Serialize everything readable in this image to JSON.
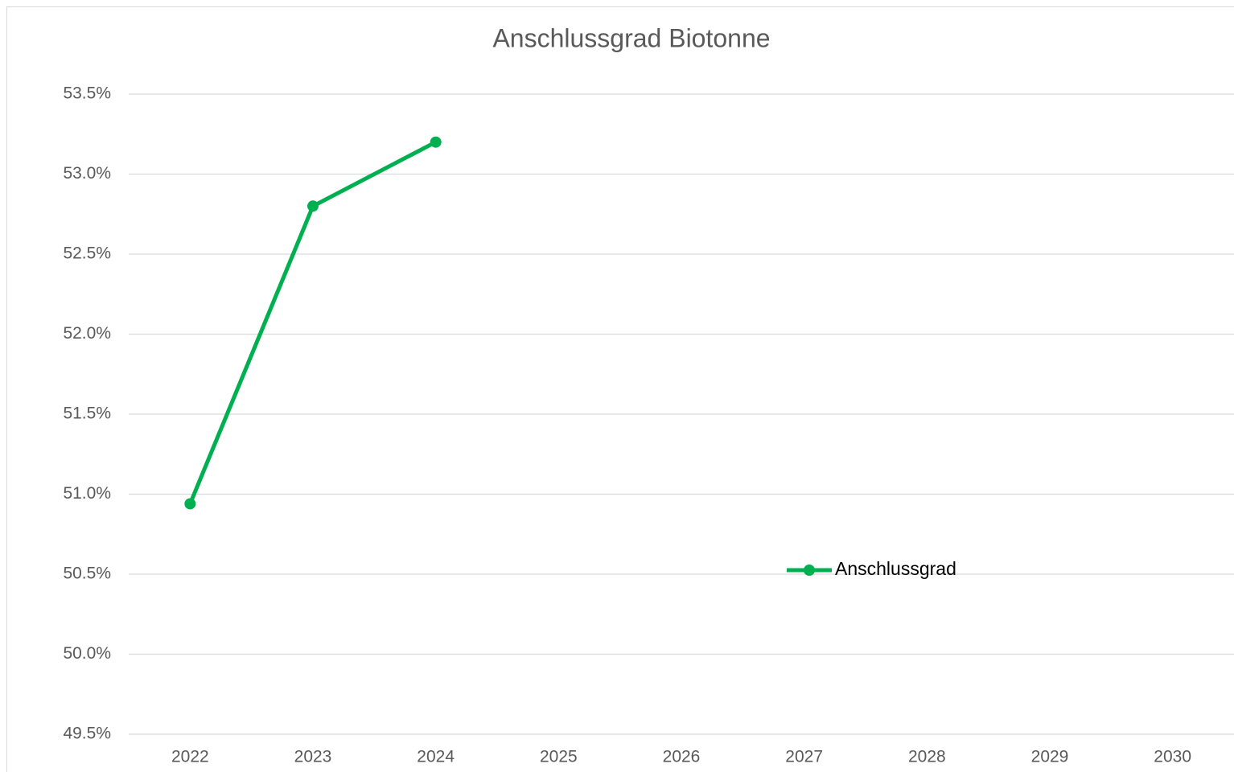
{
  "chart_data": {
    "type": "line",
    "title": "Anschlussgrad Biotonne",
    "categories": [
      "2022",
      "2023",
      "2024",
      "2025",
      "2026",
      "2027",
      "2028",
      "2029",
      "2030"
    ],
    "series": [
      {
        "name": "Anschlussgrad",
        "color": "#00b050",
        "values": [
          50.94,
          52.8,
          53.2,
          null,
          null,
          null,
          null,
          null,
          null
        ]
      }
    ],
    "ylim": [
      49.5,
      53.5
    ],
    "yticks": [
      {
        "value": 49.5,
        "label": "49.5%"
      },
      {
        "value": 50,
        "label": "50.0%"
      },
      {
        "value": 50.5,
        "label": "50.5%"
      },
      {
        "value": 51,
        "label": "51.0%"
      },
      {
        "value": 51.5,
        "label": "51.5%"
      },
      {
        "value": 52,
        "label": "52.0%"
      },
      {
        "value": 52.5,
        "label": "52.5%"
      },
      {
        "value": 53,
        "label": "53.0%"
      },
      {
        "value": 53.5,
        "label": "53.5%"
      }
    ],
    "grid": true
  }
}
